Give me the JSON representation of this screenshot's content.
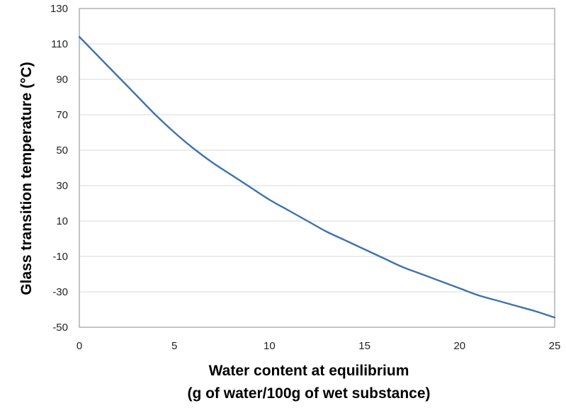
{
  "chart_data": {
    "type": "line",
    "title": "",
    "xlabel_line1": "Water content at equilibrium",
    "xlabel_line2": "(g of water/100g of wet substance)",
    "ylabel": "Glass transition temperature (°C)",
    "xlim": [
      0,
      25
    ],
    "ylim": [
      -50,
      130
    ],
    "xticks": [
      0,
      5,
      10,
      15,
      20,
      25
    ],
    "yticks": [
      130,
      110,
      90,
      70,
      50,
      30,
      10,
      -10,
      -30,
      -50
    ],
    "grid": "horizontal",
    "legend": "none",
    "series": [
      {
        "color": "#3d72b0",
        "x": [
          0,
          1,
          2,
          3,
          4,
          5,
          6,
          7,
          8,
          9,
          10,
          11,
          12,
          13,
          14,
          15,
          16,
          17,
          18,
          19,
          20,
          21,
          22,
          23,
          24,
          25
        ],
        "y": [
          114,
          103,
          92,
          81,
          70,
          60,
          51,
          43,
          36,
          29,
          22,
          16,
          10,
          4,
          -1,
          -6,
          -11,
          -16,
          -20,
          -24,
          -28,
          -32,
          -35,
          -38,
          -41,
          -44.5
        ]
      }
    ]
  }
}
